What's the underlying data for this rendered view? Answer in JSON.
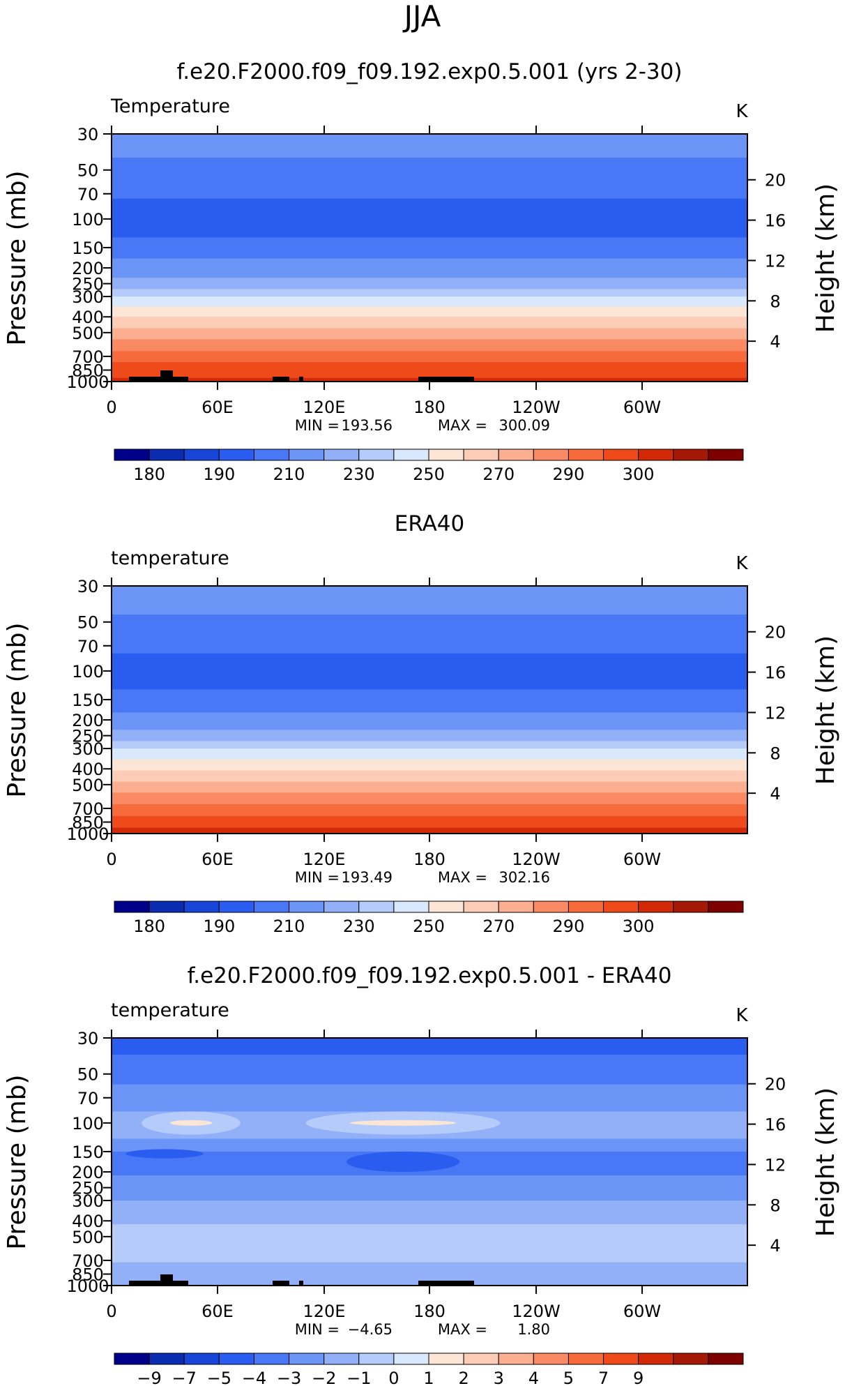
{
  "figure_title": "JJA",
  "chart_data": [
    {
      "type": "heatmap",
      "title": "f.e20.F2000.f09_f09.192.exp0.5.001 (yrs 2-30)",
      "variable": "Temperature",
      "units": "K",
      "ylabel": "Pressure  (mb)",
      "ylabel_right": "Height  (km)",
      "x_ticks": [
        "0",
        "60E",
        "120E",
        "180",
        "120W",
        "60W"
      ],
      "y_ticks": [
        "30",
        "50",
        "70",
        "100",
        "150",
        "200",
        "250",
        "300",
        "400",
        "500",
        "700",
        "850",
        "1000"
      ],
      "height_ticks": [
        "20",
        "16",
        "12",
        "8",
        "4"
      ],
      "stats": {
        "min_label": "MIN  =",
        "min_value": "193.56",
        "max_label": "MAX  =",
        "max_value": "300.09"
      },
      "min_value": 193.56,
      "max_value": 300.09,
      "colorbar": {
        "labels": [
          "180",
          "190",
          "210",
          "230",
          "250",
          "270",
          "290",
          "300"
        ],
        "colors": [
          "#00008b",
          "#0a2cb0",
          "#1645d8",
          "#2b5cf0",
          "#4878f6",
          "#6b94f7",
          "#92b0f8",
          "#b5cbfa",
          "#d9e8fb",
          "#fbe6d5",
          "#fcccb6",
          "#fcae90",
          "#f98a63",
          "#f66a3c",
          "#ee4a1a",
          "#d22a08",
          "#a61806",
          "#7e0000"
        ]
      },
      "profile_bands": [
        {
          "p_top": 30,
          "p_bottom": 42,
          "color": "#6b94f7"
        },
        {
          "p_top": 42,
          "p_bottom": 75,
          "color": "#4878f6"
        },
        {
          "p_top": 75,
          "p_bottom": 130,
          "color": "#2b5cf0"
        },
        {
          "p_top": 130,
          "p_bottom": 175,
          "color": "#4878f6"
        },
        {
          "p_top": 175,
          "p_bottom": 230,
          "color": "#6b94f7"
        },
        {
          "p_top": 230,
          "p_bottom": 270,
          "color": "#92b0f8"
        },
        {
          "p_top": 270,
          "p_bottom": 300,
          "color": "#b5cbfa"
        },
        {
          "p_top": 300,
          "p_bottom": 345,
          "color": "#d9e8fb"
        },
        {
          "p_top": 345,
          "p_bottom": 400,
          "color": "#fbe6d5"
        },
        {
          "p_top": 400,
          "p_bottom": 470,
          "color": "#fcccb6"
        },
        {
          "p_top": 470,
          "p_bottom": 550,
          "color": "#fcae90"
        },
        {
          "p_top": 550,
          "p_bottom": 650,
          "color": "#f98a63"
        },
        {
          "p_top": 650,
          "p_bottom": 760,
          "color": "#f66a3c"
        },
        {
          "p_top": 760,
          "p_bottom": 950,
          "color": "#ee4a1a"
        },
        {
          "p_top": 950,
          "p_bottom": 1000,
          "color": "#d22a08"
        }
      ]
    },
    {
      "type": "heatmap",
      "title": "ERA40",
      "variable": "temperature",
      "units": "K",
      "ylabel": "Pressure  (mb)",
      "ylabel_right": "Height  (km)",
      "x_ticks": [
        "0",
        "60E",
        "120E",
        "180",
        "120W",
        "60W"
      ],
      "y_ticks": [
        "30",
        "50",
        "70",
        "100",
        "150",
        "200",
        "250",
        "300",
        "400",
        "500",
        "700",
        "850",
        "1000"
      ],
      "height_ticks": [
        "20",
        "16",
        "12",
        "8",
        "4"
      ],
      "stats": {
        "min_label": "MIN  =",
        "min_value": "193.49",
        "max_label": "MAX  =",
        "max_value": "302.16"
      },
      "min_value": 193.49,
      "max_value": 302.16,
      "colorbar": {
        "labels": [
          "180",
          "190",
          "210",
          "230",
          "250",
          "270",
          "290",
          "300"
        ],
        "colors": [
          "#00008b",
          "#0a2cb0",
          "#1645d8",
          "#2b5cf0",
          "#4878f6",
          "#6b94f7",
          "#92b0f8",
          "#b5cbfa",
          "#d9e8fb",
          "#fbe6d5",
          "#fcccb6",
          "#fcae90",
          "#f98a63",
          "#f66a3c",
          "#ee4a1a",
          "#d22a08",
          "#a61806",
          "#7e0000"
        ]
      },
      "profile_bands": [
        {
          "p_top": 30,
          "p_bottom": 45,
          "color": "#6b94f7"
        },
        {
          "p_top": 45,
          "p_bottom": 78,
          "color": "#4878f6"
        },
        {
          "p_top": 78,
          "p_bottom": 130,
          "color": "#2b5cf0"
        },
        {
          "p_top": 130,
          "p_bottom": 180,
          "color": "#4878f6"
        },
        {
          "p_top": 180,
          "p_bottom": 230,
          "color": "#6b94f7"
        },
        {
          "p_top": 230,
          "p_bottom": 270,
          "color": "#92b0f8"
        },
        {
          "p_top": 270,
          "p_bottom": 300,
          "color": "#b5cbfa"
        },
        {
          "p_top": 300,
          "p_bottom": 350,
          "color": "#d9e8fb"
        },
        {
          "p_top": 350,
          "p_bottom": 410,
          "color": "#fbe6d5"
        },
        {
          "p_top": 410,
          "p_bottom": 480,
          "color": "#fcccb6"
        },
        {
          "p_top": 480,
          "p_bottom": 560,
          "color": "#fcae90"
        },
        {
          "p_top": 560,
          "p_bottom": 660,
          "color": "#f98a63"
        },
        {
          "p_top": 660,
          "p_bottom": 780,
          "color": "#f66a3c"
        },
        {
          "p_top": 780,
          "p_bottom": 920,
          "color": "#ee4a1a"
        },
        {
          "p_top": 920,
          "p_bottom": 1000,
          "color": "#d22a08"
        }
      ]
    },
    {
      "type": "heatmap",
      "title": "f.e20.F2000.f09_f09.192.exp0.5.001 - ERA40",
      "variable": "temperature",
      "units": "K",
      "ylabel": "Pressure  (mb)",
      "ylabel_right": "Height  (km)",
      "x_ticks": [
        "0",
        "60E",
        "120E",
        "180",
        "120W",
        "60W"
      ],
      "y_ticks": [
        "30",
        "50",
        "70",
        "100",
        "150",
        "200",
        "250",
        "300",
        "400",
        "500",
        "700",
        "850",
        "1000"
      ],
      "height_ticks": [
        "20",
        "16",
        "12",
        "8",
        "4"
      ],
      "stats": {
        "min_label": "MIN  =",
        "min_value": "−4.65",
        "max_label": "MAX  =",
        "max_value": "1.80"
      },
      "min_value": -4.65,
      "max_value": 1.8,
      "colorbar": {
        "labels": [
          "−9",
          "−7",
          "−5",
          "−4",
          "−3",
          "−2",
          "−1",
          "0",
          "1",
          "2",
          "3",
          "4",
          "5",
          "7",
          "9"
        ],
        "colors": [
          "#00008b",
          "#0a2cb0",
          "#1645d8",
          "#2b5cf0",
          "#4878f6",
          "#6b94f7",
          "#92b0f8",
          "#b5cbfa",
          "#d9e8fb",
          "#fbe6d5",
          "#fcccb6",
          "#fcae90",
          "#f98a63",
          "#f66a3c",
          "#ee4a1a",
          "#d22a08",
          "#a61806",
          "#7e0000"
        ]
      },
      "profile_bands": [
        {
          "p_top": 30,
          "p_bottom": 38,
          "color": "#2b5cf0"
        },
        {
          "p_top": 38,
          "p_bottom": 58,
          "color": "#4878f6"
        },
        {
          "p_top": 58,
          "p_bottom": 85,
          "color": "#6b94f7"
        },
        {
          "p_top": 85,
          "p_bottom": 125,
          "color": "#92b0f8"
        },
        {
          "p_top": 125,
          "p_bottom": 150,
          "color": "#6b94f7"
        },
        {
          "p_top": 150,
          "p_bottom": 210,
          "color": "#4878f6"
        },
        {
          "p_top": 210,
          "p_bottom": 300,
          "color": "#6b94f7"
        },
        {
          "p_top": 300,
          "p_bottom": 420,
          "color": "#92b0f8"
        },
        {
          "p_top": 420,
          "p_bottom": 720,
          "color": "#b5cbfa"
        },
        {
          "p_top": 720,
          "p_bottom": 1000,
          "color": "#92b0f8"
        }
      ],
      "anomalies": [
        {
          "lon": 45,
          "p": 100,
          "lon_halfwidth": 28,
          "p_span": [
            85,
            118
          ],
          "color": "#b5cbfa"
        },
        {
          "lon": 45,
          "p": 100,
          "lon_halfwidth": 12,
          "p_span": [
            96,
            104
          ],
          "color": "#fbe6d5"
        },
        {
          "lon": 165,
          "p": 100,
          "lon_halfwidth": 55,
          "p_span": [
            85,
            118
          ],
          "color": "#b5cbfa"
        },
        {
          "lon": 165,
          "p": 100,
          "lon_halfwidth": 30,
          "p_span": [
            96,
            104
          ],
          "color": "#fbe6d5"
        },
        {
          "lon": 165,
          "p": 170,
          "lon_halfwidth": 32,
          "p_span": [
            150,
            200
          ],
          "color": "#2b5cf0"
        },
        {
          "lon": 30,
          "p": 155,
          "lon_halfwidth": 22,
          "p_span": [
            145,
            165
          ],
          "color": "#2b5cf0"
        }
      ]
    }
  ]
}
